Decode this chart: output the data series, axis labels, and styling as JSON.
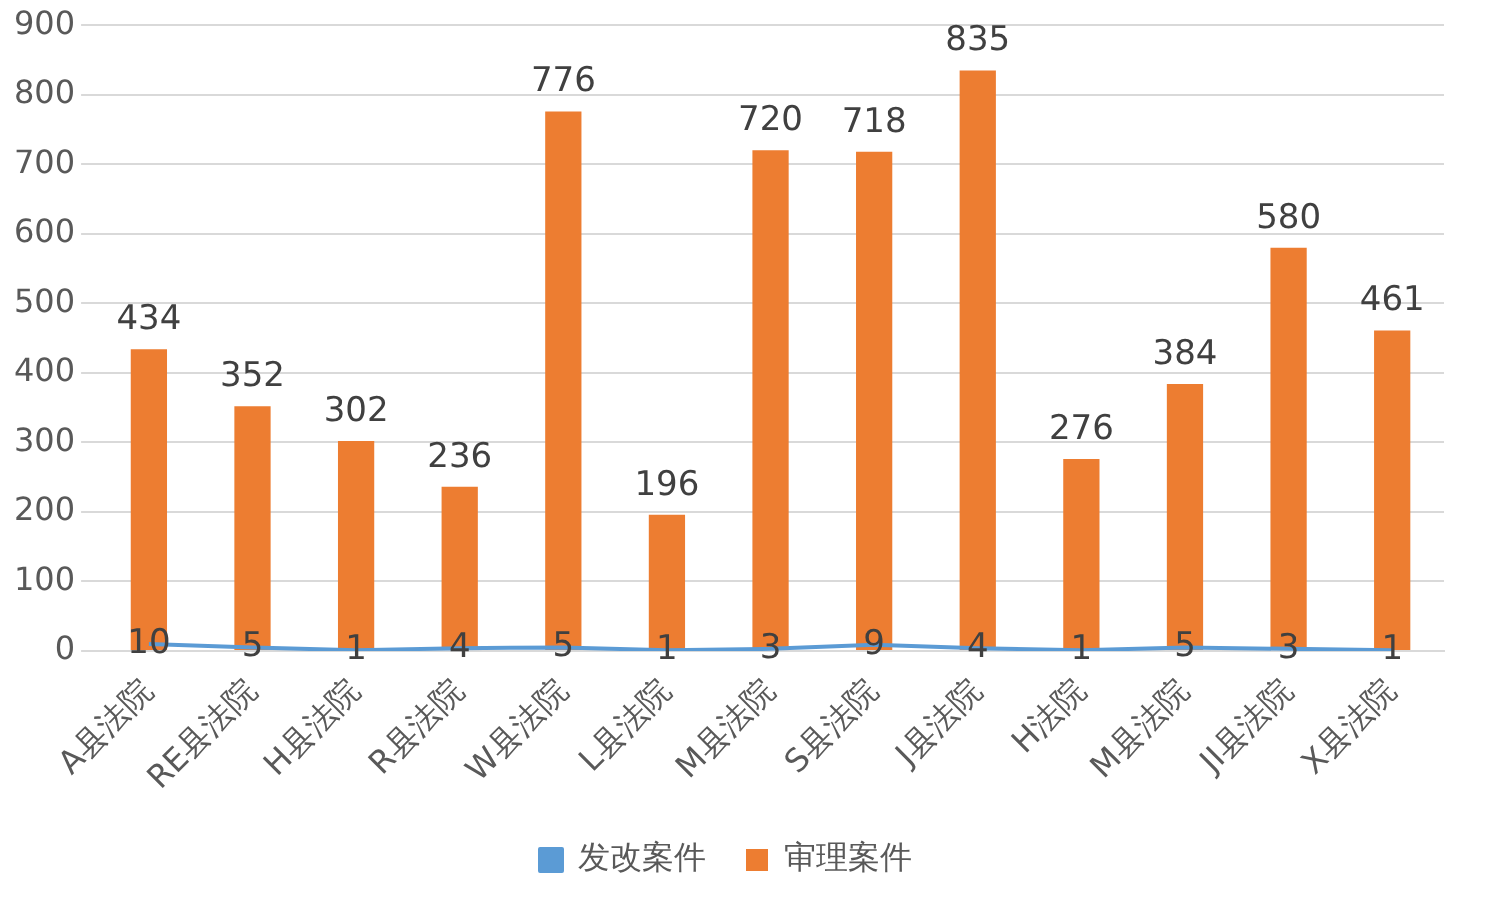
{
  "chart_data": {
    "type": "bar",
    "categories": [
      "A县法院",
      "RE县法院",
      "H县法院",
      "R县法院",
      "W县法院",
      "L县法院",
      "M县法院",
      "S县法院",
      "J县法院",
      "H法院",
      "M县法院",
      "JI县法院",
      "X县法院"
    ],
    "series": [
      {
        "name": "发改案件",
        "type": "line",
        "color": "#5b9bd5",
        "values": [
          10,
          5,
          1,
          4,
          5,
          1,
          3,
          9,
          4,
          1,
          5,
          3,
          1
        ]
      },
      {
        "name": "审理案件",
        "color": "#ed7d31",
        "values": [
          434,
          352,
          302,
          236,
          776,
          196,
          720,
          718,
          835,
          276,
          384,
          580,
          461
        ]
      }
    ],
    "ylim": [
      0,
      900
    ],
    "yticks": [
      0,
      100,
      200,
      300,
      400,
      500,
      600,
      700,
      800,
      900
    ],
    "grid": "y",
    "legend": "bottom",
    "data_labels": true,
    "marker": "none"
  }
}
